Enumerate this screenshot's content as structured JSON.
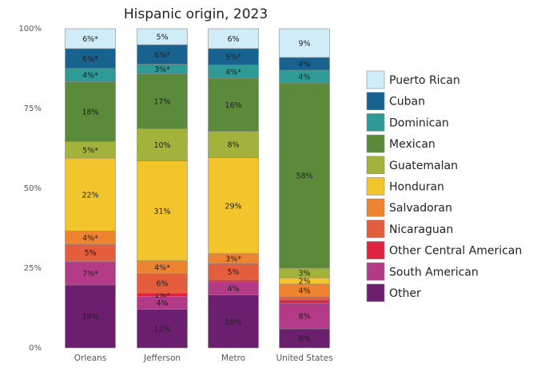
{
  "chart_data": {
    "type": "bar",
    "stacked": true,
    "percent": true,
    "title": "Hispanic origin, 2023",
    "xlabel": "",
    "ylabel": "",
    "ylim": [
      0,
      100
    ],
    "y_ticks": [
      "0%",
      "25%",
      "50%",
      "75%",
      "100%"
    ],
    "grid": false,
    "legend_position": "right",
    "categories": [
      "Orleans",
      "Jefferson",
      "Metro",
      "United States"
    ],
    "series": [
      {
        "name": "Other",
        "color": "#6b1f6e",
        "values": [
          19,
          12,
          16,
          6
        ],
        "labels": [
          "19%",
          "12%",
          "16%",
          "6%"
        ]
      },
      {
        "name": "South American",
        "color": "#b33a87",
        "values": [
          7,
          4,
          4,
          8
        ],
        "labels": [
          "7%*",
          "4%",
          "4%",
          "8%"
        ]
      },
      {
        "name": "Other Central American",
        "color": "#e0213f",
        "values": [
          0.2,
          1,
          0.5,
          1
        ],
        "labels": [
          "",
          "1%*",
          "",
          ""
        ]
      },
      {
        "name": "Nicaraguan",
        "color": "#e45d3d",
        "values": [
          5,
          6,
          5,
          1
        ],
        "labels": [
          "5%",
          "6%",
          "5%",
          ""
        ]
      },
      {
        "name": "Salvadoran",
        "color": "#ef8430",
        "values": [
          4,
          4,
          3,
          4
        ],
        "labels": [
          "4%*",
          "4%*",
          "3%*",
          "4%"
        ]
      },
      {
        "name": "Honduran",
        "color": "#f2c52c",
        "values": [
          22,
          31,
          29,
          2
        ],
        "labels": [
          "22%",
          "31%",
          "29%",
          "2%"
        ]
      },
      {
        "name": "Guatemalan",
        "color": "#a3b23b",
        "values": [
          5,
          10,
          8,
          3
        ],
        "labels": [
          "5%*",
          "10%",
          "8%",
          "3%"
        ]
      },
      {
        "name": "Mexican",
        "color": "#5a8a3a",
        "values": [
          18,
          17,
          16,
          58
        ],
        "labels": [
          "18%",
          "17%",
          "16%",
          "58%"
        ]
      },
      {
        "name": "Dominican",
        "color": "#2e9b96",
        "values": [
          4,
          3,
          4,
          4
        ],
        "labels": [
          "4%*",
          "3%*",
          "4%*",
          "4%"
        ]
      },
      {
        "name": "Cuban",
        "color": "#17628f",
        "values": [
          6,
          6,
          5,
          4
        ],
        "labels": [
          "6%*",
          "6%*",
          "5%*",
          "4%"
        ]
      },
      {
        "name": "Puerto Rican",
        "color": "#cfecf8",
        "values": [
          6,
          5,
          6,
          9
        ],
        "labels": [
          "6%*",
          "5%",
          "6%",
          "9%"
        ]
      }
    ],
    "legend_order": [
      "Puerto Rican",
      "Cuban",
      "Dominican",
      "Mexican",
      "Guatemalan",
      "Honduran",
      "Salvadoran",
      "Nicaraguan",
      "Other Central American",
      "South American",
      "Other"
    ]
  }
}
